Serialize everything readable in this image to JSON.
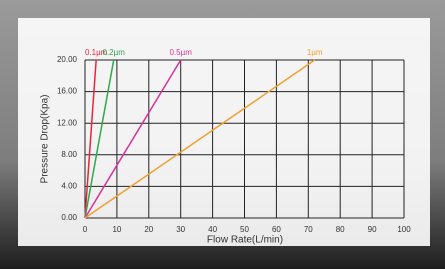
{
  "chart_data": {
    "type": "line",
    "x_label": "Flow Rate(L/min)",
    "y_label": "Pressure Drop(Kpa)",
    "series": [
      {
        "name": "0.1µm",
        "color": "#e8263a",
        "x": [
          0,
          3.5
        ],
        "values": [
          0,
          20
        ]
      },
      {
        "name": "0.2µm",
        "color": "#2fa84f",
        "x": [
          0,
          9
        ],
        "values": [
          0,
          20
        ]
      },
      {
        "name": "0.5µm",
        "color": "#d6339a",
        "x": [
          0,
          30
        ],
        "values": [
          0,
          20
        ]
      },
      {
        "name": "1µm",
        "color": "#f0a030",
        "x": [
          0,
          72
        ],
        "values": [
          0,
          20
        ]
      }
    ],
    "xlim": [
      0,
      100
    ],
    "xticks": [
      0,
      10,
      20,
      30,
      40,
      50,
      60,
      70,
      80,
      90,
      100
    ],
    "ylim": [
      0,
      20
    ],
    "yticks": [
      {
        "value": 0,
        "label": "0.00"
      },
      {
        "value": 4,
        "label": "4.00"
      },
      {
        "value": 8,
        "label": "8.00"
      },
      {
        "value": 12,
        "label": "12.00"
      },
      {
        "value": 16,
        "label": "16.00"
      },
      {
        "value": 20,
        "label": "20.00"
      }
    ],
    "grid": true
  }
}
